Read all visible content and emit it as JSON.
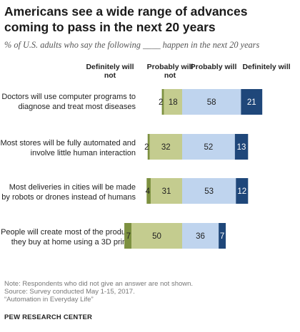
{
  "header": {
    "title": "Americans see a wide range of advances coming to pass in the next 20 years",
    "subtitle": "% of U.S. adults who say the following ____ happen in the next 20 years"
  },
  "columns": {
    "definitely_not": "Definitely will not",
    "probably_not": "Probably will not",
    "probably": "Probably will",
    "definitely": "Definitely will"
  },
  "chart_data": {
    "type": "bar",
    "orientation": "horizontal-diverging",
    "title": "Americans see a wide range of advances coming to pass in the next 20 years",
    "subtitle": "% of U.S. adults who say the following ____ happen in the next 20 years",
    "categories": [
      "Doctors will use computer programs to diagnose and treat most diseases",
      "Most stores will be fully automated and involve little human interaction",
      "Most deliveries in cities will be made by robots or drones instead of humans",
      "People will create most of the products they buy at home using a 3D printer"
    ],
    "series": [
      {
        "name": "Definitely will not",
        "values": [
          2,
          2,
          4,
          7
        ],
        "color": "#7d9140"
      },
      {
        "name": "Probably will not",
        "values": [
          18,
          32,
          31,
          50
        ],
        "color": "#c4cc8f"
      },
      {
        "name": "Probably will",
        "values": [
          58,
          52,
          53,
          36
        ],
        "color": "#bfd4ee"
      },
      {
        "name": "Definitely will",
        "values": [
          21,
          13,
          12,
          7
        ],
        "color": "#1f477a"
      }
    ]
  },
  "footer": {
    "note": "Note: Respondents who did not give an answer are not shown.",
    "source": "Source: Survey conducted May 1-15, 2017.",
    "report": "“Automation in Everyday Life”",
    "org": "PEW RESEARCH CENTER"
  }
}
